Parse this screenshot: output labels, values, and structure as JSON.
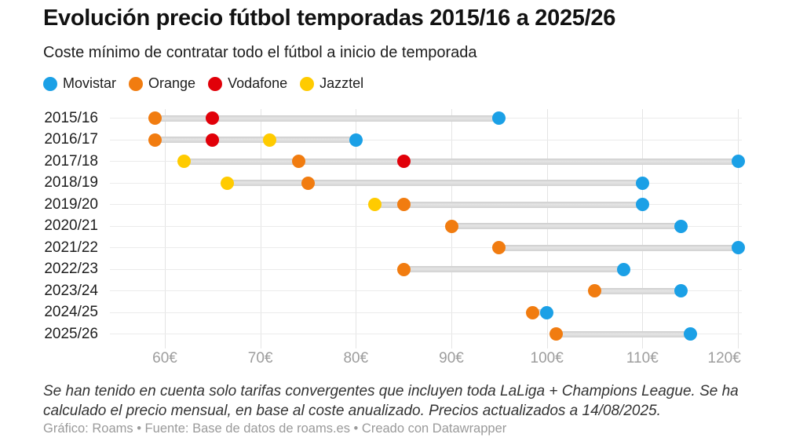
{
  "header": {
    "title": "Evolución precio fútbol temporadas 2015/16 a 2025/26",
    "subtitle": "Coste mínimo de contratar todo el fútbol a inicio de temporada"
  },
  "legend": {
    "items": [
      {
        "label": "Movistar",
        "color": "#1ba0e6"
      },
      {
        "label": "Orange",
        "color": "#f17c10"
      },
      {
        "label": "Vodafone",
        "color": "#e10009"
      },
      {
        "label": "Jazztel",
        "color": "#ffcb00"
      }
    ]
  },
  "chart_data": {
    "type": "scatter",
    "variant": "dot-range",
    "title": "Evolución precio fútbol temporadas 2015/16 a 2025/26",
    "subtitle": "Coste mínimo de contratar todo el fútbol a inicio de temporada",
    "unit": "€/mes",
    "legend_position": "top",
    "grid": true,
    "categories": [
      "2015/16",
      "2016/17",
      "2017/18",
      "2018/19",
      "2019/20",
      "2020/21",
      "2021/22",
      "2022/23",
      "2023/24",
      "2024/25",
      "2025/26"
    ],
    "series": [
      {
        "name": "Movistar",
        "color": "#1ba0e6",
        "values": [
          95,
          80,
          120,
          110,
          110,
          114,
          120,
          108,
          114,
          100,
          115
        ]
      },
      {
        "name": "Orange",
        "color": "#f17c10",
        "values": [
          59,
          59,
          74,
          75,
          85,
          90,
          95,
          85,
          105,
          98.5,
          101
        ]
      },
      {
        "name": "Vodafone",
        "color": "#e10009",
        "values": [
          65,
          65,
          85,
          null,
          null,
          null,
          null,
          null,
          null,
          null,
          null
        ]
      },
      {
        "name": "Jazztel",
        "color": "#ffcb00",
        "values": [
          null,
          71,
          62,
          66.5,
          82,
          null,
          null,
          null,
          null,
          null,
          null
        ]
      }
    ],
    "x_axis": {
      "ticks": [
        60,
        70,
        80,
        90,
        100,
        110,
        120
      ],
      "tick_labels": [
        "60€",
        "70€",
        "80€",
        "90€",
        "100€",
        "110€",
        "120€"
      ],
      "xlim": [
        53.5,
        121
      ]
    },
    "range_bar_color": "#d9d9d9"
  },
  "footer": {
    "note": "Se han tenido en cuenta solo tarifas convergentes que incluyen toda LaLiga + Champions League. Se ha calculado el precio mensual, en base al coste anualizado. Precios actualizados a 14/08/2025.",
    "credit": "Gráfico: Roams • Fuente: Base de datos de roams.es • Creado con Datawrapper"
  }
}
